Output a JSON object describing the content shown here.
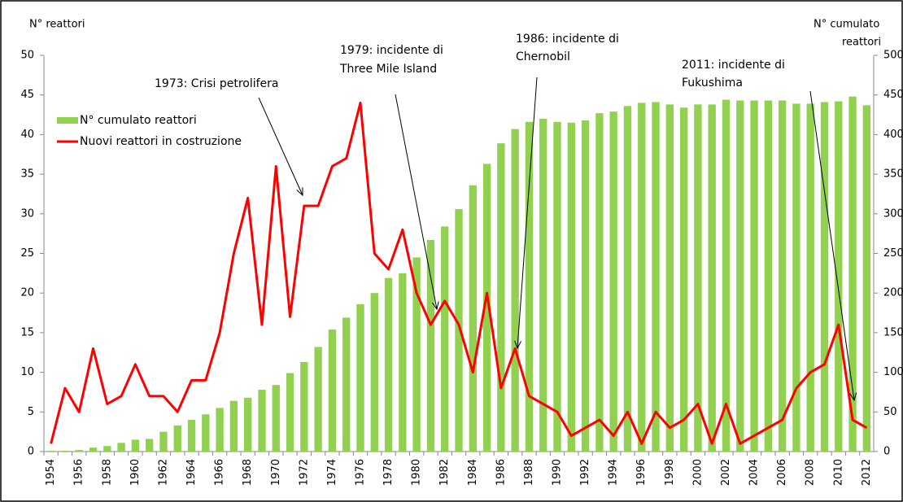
{
  "chart_data": {
    "type": "bar_line",
    "y_label": "N° reattori",
    "y2_label": [
      "N° cumulato",
      "reattori"
    ],
    "categories": [
      "1954",
      null,
      "1956",
      null,
      "1958",
      null,
      "1960",
      null,
      "1962",
      null,
      "1964",
      null,
      "1966",
      null,
      "1968",
      null,
      "1970",
      null,
      "1972",
      null,
      "1974",
      null,
      "1976",
      null,
      "1978",
      null,
      "1980",
      null,
      "1982",
      null,
      "1984",
      null,
      "1986",
      null,
      "1988",
      null,
      "1990",
      null,
      "1992",
      null,
      "1994",
      null,
      "1996",
      null,
      "1998",
      null,
      "2000",
      null,
      "2002",
      null,
      "2004",
      null,
      "2006",
      null,
      "2008",
      null,
      "2010",
      null,
      "2012"
    ],
    "series": [
      {
        "name": "N° cumulato reattori",
        "type": "bar",
        "axis": "y2",
        "color": "#92d050",
        "values": [
          1,
          1,
          2,
          5,
          7,
          11,
          15,
          16,
          25,
          33,
          40,
          47,
          55,
          64,
          68,
          78,
          84,
          99,
          113,
          132,
          154,
          169,
          186,
          200,
          219,
          225,
          245,
          267,
          284,
          306,
          336,
          363,
          389,
          407,
          416,
          420,
          416,
          415,
          418,
          427,
          429,
          436,
          440,
          441,
          438,
          434,
          438,
          438,
          444,
          443,
          443,
          443,
          443,
          439,
          439,
          441,
          442,
          448,
          437
        ]
      },
      {
        "name": "Nuovi reattori in costruzione",
        "type": "line",
        "axis": "y",
        "color": "#ff0000",
        "values": [
          1,
          8,
          5,
          13,
          6,
          7,
          11,
          7,
          7,
          5,
          9,
          9,
          15,
          25,
          32,
          16,
          36,
          17,
          31,
          31,
          36,
          37,
          44,
          25,
          23,
          28,
          20,
          16,
          19,
          16,
          10,
          20,
          8,
          13,
          7,
          6,
          5,
          2,
          3,
          4,
          2,
          5,
          1,
          5,
          3,
          4,
          6,
          1,
          6,
          1,
          2,
          3,
          4,
          8,
          10,
          11,
          16,
          4,
          3
        ]
      }
    ],
    "ylim": [
      0,
      50
    ],
    "yticks": [
      0,
      5,
      10,
      15,
      20,
      25,
      30,
      35,
      40,
      45,
      50
    ],
    "y2lim": [
      0,
      500
    ],
    "y2ticks": [
      0,
      50,
      100,
      150,
      200,
      250,
      300,
      350,
      400,
      450,
      500
    ],
    "annotations": [
      {
        "lines": [
          "1973: Crisi petrolifera"
        ]
      },
      {
        "lines": [
          "1979:  incidente di",
          "Three Mile Island"
        ]
      },
      {
        "lines": [
          "1986: incidente di",
          "Chernobil"
        ]
      },
      {
        "lines": [
          "2011: incidente di",
          "Fukushima"
        ]
      }
    ]
  }
}
